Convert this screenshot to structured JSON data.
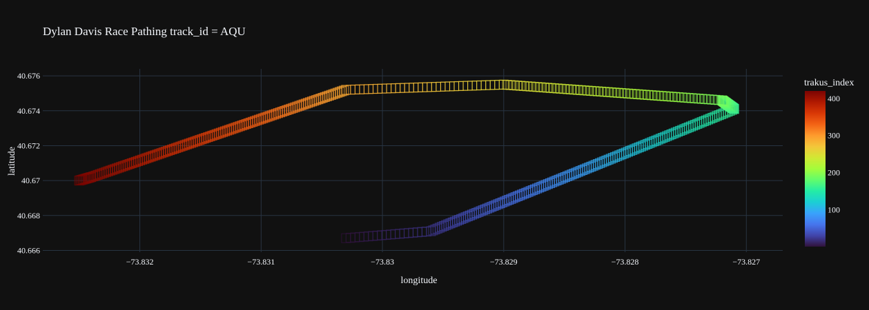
{
  "chart_data": {
    "type": "scatter",
    "title": "Dylan Davis Race Pathing track_id = AQU",
    "xlabel": "longitude",
    "ylabel": "latitude",
    "xlim": [
      -73.8328,
      -73.8267
    ],
    "ylim": [
      40.6659,
      40.6764
    ],
    "x_ticks": [
      -73.832,
      -73.831,
      -73.83,
      -73.829,
      -73.828,
      -73.827
    ],
    "x_tick_labels": [
      "−73.832",
      "−73.831",
      "−73.83",
      "−73.829",
      "−73.828",
      "−73.827"
    ],
    "y_ticks": [
      40.666,
      40.668,
      40.67,
      40.672,
      40.674,
      40.676
    ],
    "y_tick_labels": [
      "40.666",
      "40.668",
      "40.67",
      "40.672",
      "40.674",
      "40.676"
    ],
    "grid": true,
    "marker": "square-open",
    "colorbar": {
      "title": "trakus_index",
      "range": [
        1,
        420
      ],
      "ticks": [
        100,
        200,
        300,
        400
      ],
      "tick_labels": [
        "100",
        "200",
        "300",
        "400"
      ],
      "colorscale": [
        "#30123b",
        "#4145ab",
        "#4675ed",
        "#39a2fc",
        "#1bcfd4",
        "#24eca6",
        "#61fc6c",
        "#a4fc3b",
        "#d1e834",
        "#f3c63a",
        "#fe9b2d",
        "#f36315",
        "#d93806",
        "#b11901",
        "#7a0402"
      ]
    },
    "path_segments": [
      {
        "trakus_index_start": 1,
        "trakus_index_end": 20,
        "lon_start": -73.8303,
        "lat_start": 40.6667,
        "lon_end": -73.8296,
        "lat_end": 40.6671
      },
      {
        "trakus_index_start": 20,
        "trakus_index_end": 160,
        "lon_start": -73.8296,
        "lat_start": 40.6671,
        "lon_end": -73.8271,
        "lat_end": 40.6741
      },
      {
        "trakus_index_start": 160,
        "trakus_index_end": 190,
        "lon_start": -73.8271,
        "lat_start": 40.6741,
        "lon_end": -73.8272,
        "lat_end": 40.6746
      },
      {
        "trakus_index_start": 190,
        "trakus_index_end": 255,
        "lon_start": -73.8272,
        "lat_start": 40.6746,
        "lon_end": -73.829,
        "lat_end": 40.6755
      },
      {
        "trakus_index_start": 255,
        "trakus_index_end": 290,
        "lon_start": -73.829,
        "lat_start": 40.6755,
        "lon_end": -73.8303,
        "lat_end": 40.6752
      },
      {
        "trakus_index_start": 290,
        "trakus_index_end": 410,
        "lon_start": -73.8303,
        "lat_start": 40.6752,
        "lon_end": -73.8324,
        "lat_end": 40.6702
      },
      {
        "trakus_index_start": 410,
        "trakus_index_end": 420,
        "lon_start": -73.8324,
        "lat_start": 40.6702,
        "lon_end": -73.8325,
        "lat_end": 40.67
      }
    ]
  }
}
